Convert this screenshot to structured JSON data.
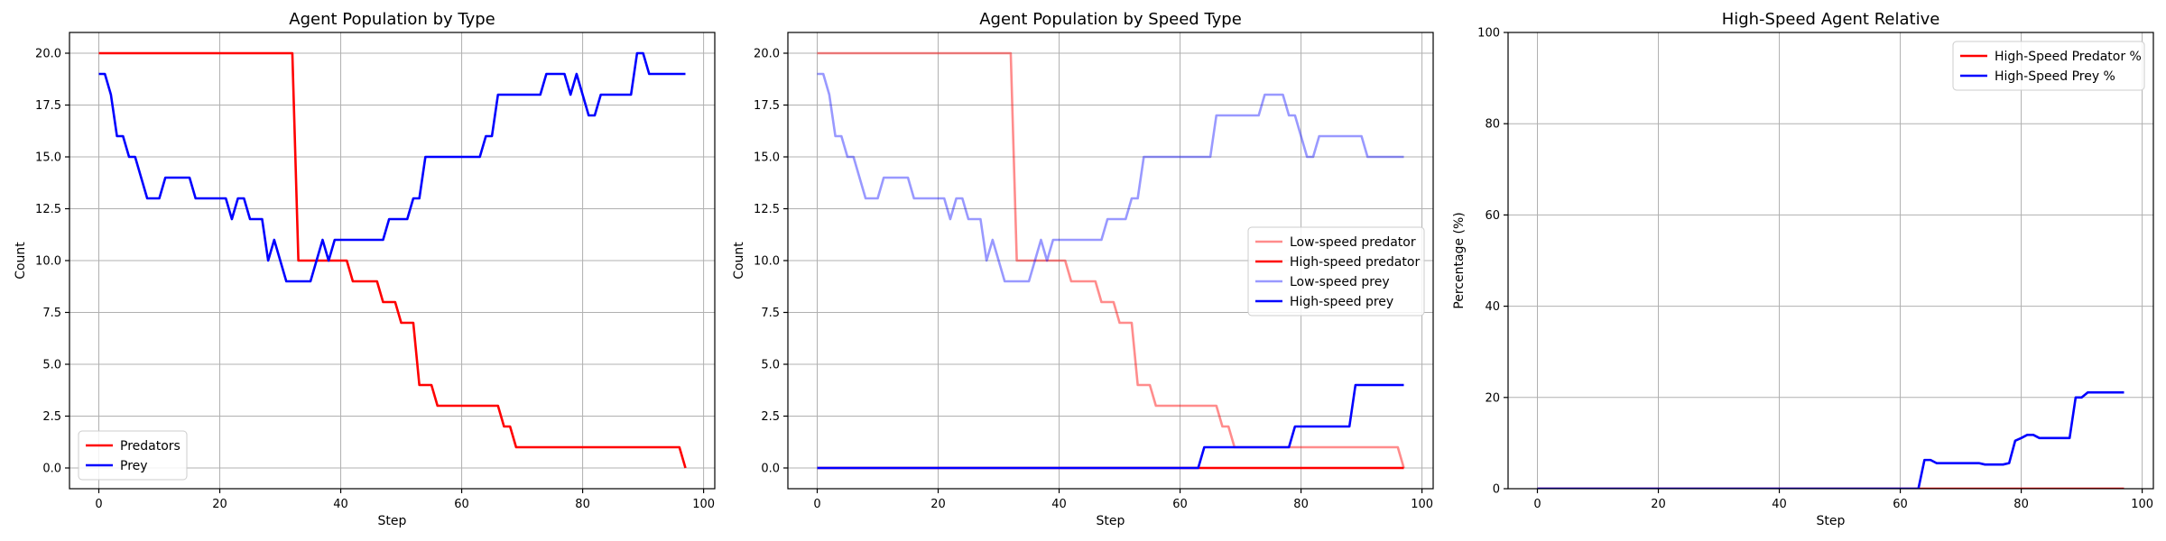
{
  "chart_data": [
    {
      "type": "line",
      "title": "Agent Population by Type",
      "xlabel": "Step",
      "ylabel": "Count",
      "xlim": [
        -4.85,
        101.85
      ],
      "ylim": [
        -1.0,
        21.0
      ],
      "xticks": [
        0,
        20,
        40,
        60,
        80,
        100
      ],
      "xtick_labels": [
        "0",
        "20",
        "40",
        "60",
        "80",
        "100"
      ],
      "yticks": [
        0,
        2.5,
        5,
        7.5,
        10,
        12.5,
        15,
        17.5,
        20
      ],
      "ytick_labels": [
        "0.0",
        "2.5",
        "5.0",
        "7.5",
        "10.0",
        "12.5",
        "15.0",
        "17.5",
        "20.0"
      ],
      "grid": true,
      "legend": "lower-left",
      "series": [
        {
          "name": "Predators",
          "color": "#ff0000",
          "opacity": 1,
          "values": [
            [
              0,
              20
            ],
            [
              32,
              20
            ],
            [
              33,
              10
            ],
            [
              41,
              10
            ],
            [
              42,
              9
            ],
            [
              46,
              9
            ],
            [
              47,
              8
            ],
            [
              49,
              8
            ],
            [
              50,
              7
            ],
            [
              52,
              7
            ],
            [
              53,
              4
            ],
            [
              55,
              4
            ],
            [
              56,
              3
            ],
            [
              66,
              3
            ],
            [
              67,
              2
            ],
            [
              68,
              2
            ],
            [
              69,
              1
            ],
            [
              96,
              1
            ],
            [
              97,
              0
            ]
          ]
        },
        {
          "name": "Prey",
          "color": "#0000ff",
          "opacity": 1,
          "values": [
            [
              0,
              19
            ],
            [
              1,
              19
            ],
            [
              2,
              18
            ],
            [
              3,
              16
            ],
            [
              4,
              16
            ],
            [
              5,
              15
            ],
            [
              6,
              15
            ],
            [
              7,
              14
            ],
            [
              8,
              13
            ],
            [
              10,
              13
            ],
            [
              11,
              14
            ],
            [
              15,
              14
            ],
            [
              16,
              13
            ],
            [
              21,
              13
            ],
            [
              22,
              12
            ],
            [
              23,
              13
            ],
            [
              24,
              13
            ],
            [
              25,
              12
            ],
            [
              27,
              12
            ],
            [
              28,
              10
            ],
            [
              29,
              11
            ],
            [
              30,
              10
            ],
            [
              31,
              9
            ],
            [
              35,
              9
            ],
            [
              37,
              11
            ],
            [
              38,
              10
            ],
            [
              39,
              11
            ],
            [
              47,
              11
            ],
            [
              48,
              12
            ],
            [
              51,
              12
            ],
            [
              52,
              13
            ],
            [
              53,
              13
            ],
            [
              54,
              15
            ],
            [
              63,
              15
            ],
            [
              64,
              16
            ],
            [
              65,
              16
            ],
            [
              66,
              18
            ],
            [
              73,
              18
            ],
            [
              74,
              19
            ],
            [
              77,
              19
            ],
            [
              78,
              18
            ],
            [
              79,
              19
            ],
            [
              80,
              18
            ],
            [
              81,
              17
            ],
            [
              82,
              17
            ],
            [
              83,
              18
            ],
            [
              88,
              18
            ],
            [
              89,
              20
            ],
            [
              90,
              20
            ],
            [
              91,
              19
            ],
            [
              97,
              19
            ]
          ]
        }
      ]
    },
    {
      "type": "line",
      "title": "Agent Population by Speed Type",
      "xlabel": "Step",
      "ylabel": "Count",
      "xlim": [
        -4.85,
        101.85
      ],
      "ylim": [
        -1.0,
        21.0
      ],
      "xticks": [
        0,
        20,
        40,
        60,
        80,
        100
      ],
      "xtick_labels": [
        "0",
        "20",
        "40",
        "60",
        "80",
        "100"
      ],
      "yticks": [
        0,
        2.5,
        5,
        7.5,
        10,
        12.5,
        15,
        17.5,
        20
      ],
      "ytick_labels": [
        "0.0",
        "2.5",
        "5.0",
        "7.5",
        "10.0",
        "12.5",
        "15.0",
        "17.5",
        "20.0"
      ],
      "grid": true,
      "legend": "center-right",
      "series": [
        {
          "name": "Low-speed predator",
          "color": "#ff0000",
          "opacity": 0.45,
          "values": [
            [
              0,
              20
            ],
            [
              32,
              20
            ],
            [
              33,
              10
            ],
            [
              41,
              10
            ],
            [
              42,
              9
            ],
            [
              46,
              9
            ],
            [
              47,
              8
            ],
            [
              49,
              8
            ],
            [
              50,
              7
            ],
            [
              52,
              7
            ],
            [
              53,
              4
            ],
            [
              55,
              4
            ],
            [
              56,
              3
            ],
            [
              66,
              3
            ],
            [
              67,
              2
            ],
            [
              68,
              2
            ],
            [
              69,
              1
            ],
            [
              96,
              1
            ],
            [
              97,
              0
            ]
          ]
        },
        {
          "name": "High-speed predator",
          "color": "#ff0000",
          "opacity": 1,
          "values": [
            [
              0,
              0
            ],
            [
              97,
              0
            ]
          ]
        },
        {
          "name": "Low-speed prey",
          "color": "#0000ff",
          "opacity": 0.4,
          "values": [
            [
              0,
              19
            ],
            [
              1,
              19
            ],
            [
              2,
              18
            ],
            [
              3,
              16
            ],
            [
              4,
              16
            ],
            [
              5,
              15
            ],
            [
              6,
              15
            ],
            [
              7,
              14
            ],
            [
              8,
              13
            ],
            [
              10,
              13
            ],
            [
              11,
              14
            ],
            [
              15,
              14
            ],
            [
              16,
              13
            ],
            [
              21,
              13
            ],
            [
              22,
              12
            ],
            [
              23,
              13
            ],
            [
              24,
              13
            ],
            [
              25,
              12
            ],
            [
              27,
              12
            ],
            [
              28,
              10
            ],
            [
              29,
              11
            ],
            [
              30,
              10
            ],
            [
              31,
              9
            ],
            [
              35,
              9
            ],
            [
              37,
              11
            ],
            [
              38,
              10
            ],
            [
              39,
              11
            ],
            [
              47,
              11
            ],
            [
              48,
              12
            ],
            [
              51,
              12
            ],
            [
              52,
              13
            ],
            [
              53,
              13
            ],
            [
              54,
              15
            ],
            [
              65,
              15
            ],
            [
              66,
              17
            ],
            [
              73,
              17
            ],
            [
              74,
              18
            ],
            [
              77,
              18
            ],
            [
              78,
              17
            ],
            [
              79,
              17
            ],
            [
              80,
              16
            ],
            [
              81,
              15
            ],
            [
              82,
              15
            ],
            [
              83,
              16
            ],
            [
              90,
              16
            ],
            [
              91,
              15
            ],
            [
              97,
              15
            ]
          ]
        },
        {
          "name": "High-speed prey",
          "color": "#0000ff",
          "opacity": 1,
          "values": [
            [
              0,
              0
            ],
            [
              63,
              0
            ],
            [
              64,
              1
            ],
            [
              78,
              1
            ],
            [
              79,
              2
            ],
            [
              88,
              2
            ],
            [
              89,
              4
            ],
            [
              97,
              4
            ]
          ]
        }
      ]
    },
    {
      "type": "line",
      "title": "High-Speed Agent Relative",
      "xlabel": "Step",
      "ylabel": "Percentage (%)",
      "xlim": [
        -4.85,
        101.85
      ],
      "ylim": [
        0,
        100
      ],
      "xticks": [
        0,
        20,
        40,
        60,
        80,
        100
      ],
      "xtick_labels": [
        "0",
        "20",
        "40",
        "60",
        "80",
        "100"
      ],
      "yticks": [
        0,
        20,
        40,
        60,
        80,
        100
      ],
      "ytick_labels": [
        "0",
        "20",
        "40",
        "60",
        "80",
        "100"
      ],
      "grid": true,
      "legend": "top-right",
      "series": [
        {
          "name": "High-Speed Predator %",
          "color": "#ff0000",
          "opacity": 1,
          "values": [
            [
              0,
              0
            ],
            [
              97,
              0
            ]
          ]
        },
        {
          "name": "High-Speed Prey %",
          "color": "#0000ff",
          "opacity": 1,
          "values": [
            [
              0,
              0
            ],
            [
              63,
              0
            ],
            [
              64,
              6.3
            ],
            [
              65,
              6.3
            ],
            [
              66,
              5.6
            ],
            [
              73,
              5.6
            ],
            [
              74,
              5.3
            ],
            [
              77,
              5.3
            ],
            [
              78,
              5.6
            ],
            [
              79,
              10.5
            ],
            [
              80,
              11.1
            ],
            [
              81,
              11.8
            ],
            [
              82,
              11.8
            ],
            [
              83,
              11.1
            ],
            [
              88,
              11.1
            ],
            [
              89,
              20.0
            ],
            [
              90,
              20.0
            ],
            [
              91,
              21.1
            ],
            [
              97,
              21.1
            ]
          ]
        }
      ]
    }
  ]
}
